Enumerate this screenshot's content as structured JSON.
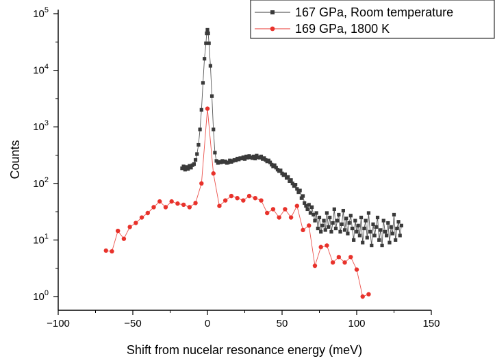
{
  "chart_data": {
    "type": "scatter",
    "xlabel": "Shift from nucelar resonance energy (meV)",
    "ylabel": "Counts",
    "xlim": [
      -100,
      150
    ],
    "ylim": [
      0.5,
      100000
    ],
    "yscale": "log",
    "grid": false,
    "legend_position": "top-right",
    "x_ticks": [
      -100,
      -50,
      0,
      50,
      100,
      150
    ],
    "x_tick_labels": [
      "−100",
      "−50",
      "0",
      "50",
      "100",
      "150"
    ],
    "y_ticks": [
      1,
      10,
      100,
      1000,
      10000,
      100000
    ],
    "y_tick_labels": [
      {
        "base": "10",
        "exp": "0"
      },
      {
        "base": "10",
        "exp": "1"
      },
      {
        "base": "10",
        "exp": "2"
      },
      {
        "base": "10",
        "exp": "3"
      },
      {
        "base": "10",
        "exp": "4"
      },
      {
        "base": "10",
        "exp": "5"
      }
    ],
    "series": [
      {
        "name": "167 GPa, Room temperature",
        "color": "#3a3a3a",
        "marker": "square",
        "x": [
          -17,
          -16,
          -15,
          -14,
          -13,
          -12,
          -11,
          -10,
          -9,
          -8,
          -7,
          -6,
          -5,
          -4,
          -3,
          -2,
          -1,
          -0.5,
          0,
          0.5,
          1,
          2,
          3,
          4,
          5,
          6,
          7,
          8,
          9,
          10,
          11,
          12,
          13,
          14,
          15,
          16,
          17,
          18,
          19,
          20,
          21,
          22,
          23,
          24,
          25,
          26,
          27,
          28,
          29,
          30,
          31,
          32,
          33,
          34,
          35,
          36,
          37,
          38,
          39,
          40,
          41,
          42,
          43,
          44,
          45,
          46,
          47,
          48,
          49,
          50,
          51,
          52,
          53,
          54,
          55,
          56,
          57,
          58,
          59,
          60,
          61,
          62,
          63,
          64,
          65,
          66,
          67,
          68,
          69,
          70,
          71,
          72,
          73,
          74,
          75,
          76,
          77,
          78,
          79,
          80,
          81,
          82,
          83,
          84,
          85,
          86,
          87,
          88,
          89,
          90,
          91,
          92,
          93,
          94,
          95,
          96,
          97,
          98,
          99,
          100,
          101,
          102,
          103,
          104,
          105,
          106,
          107,
          108,
          109,
          110,
          111,
          112,
          113,
          114,
          115,
          116,
          117,
          118,
          119,
          120,
          121,
          122,
          123,
          124,
          125,
          126,
          127,
          128,
          129,
          130
        ],
        "y": [
          185,
          200,
          175,
          195,
          180,
          205,
          190,
          210,
          220,
          260,
          330,
          480,
          900,
          2000,
          6000,
          16000,
          30000,
          45000,
          52000,
          45000,
          30000,
          12000,
          3500,
          900,
          350,
          250,
          230,
          240,
          235,
          250,
          240,
          245,
          230,
          235,
          255,
          240,
          250,
          260,
          255,
          275,
          265,
          280,
          275,
          290,
          270,
          300,
          285,
          305,
          290,
          280,
          300,
          275,
          310,
          290,
          285,
          300,
          270,
          280,
          260,
          245,
          255,
          235,
          215,
          200,
          210,
          190,
          175,
          165,
          170,
          150,
          140,
          145,
          125,
          130,
          110,
          115,
          100,
          90,
          95,
          80,
          70,
          75,
          55,
          60,
          45,
          40,
          35,
          42,
          30,
          38,
          28,
          22,
          30,
          16,
          25,
          14,
          18,
          22,
          15,
          30,
          17,
          25,
          14,
          20,
          35,
          16,
          22,
          28,
          14,
          19,
          33,
          15,
          24,
          13,
          20,
          27,
          16,
          10,
          22,
          14,
          18,
          12,
          25,
          9,
          16,
          22,
          11,
          30,
          14,
          8,
          19,
          12,
          17,
          25,
          10,
          15,
          8,
          22,
          14,
          12,
          20,
          9,
          17,
          13,
          28,
          10,
          16,
          21,
          12,
          18
        ]
      },
      {
        "name": "169 GPa, 1800 K",
        "color": "#e8322b",
        "marker": "circle",
        "x": [
          -68,
          -64,
          -60,
          -56,
          -52,
          -48,
          -44,
          -40,
          -36,
          -32,
          -28,
          -24,
          -20,
          -16,
          -12,
          -8,
          -4,
          0,
          4,
          8,
          12,
          16,
          20,
          24,
          28,
          32,
          36,
          40,
          44,
          48,
          52,
          56,
          60,
          64,
          68,
          72,
          76,
          80,
          84,
          88,
          92,
          96,
          100,
          104,
          108
        ],
        "y": [
          6.5,
          6.3,
          14.5,
          10.5,
          17,
          20,
          25,
          30,
          38,
          48,
          38,
          48,
          44,
          42,
          38,
          45,
          100,
          2100,
          150,
          40,
          50,
          60,
          55,
          50,
          60,
          55,
          50,
          30,
          35,
          25,
          35,
          25,
          40,
          15,
          18,
          3.5,
          7.5,
          8,
          4,
          5,
          4,
          5,
          3,
          1.0,
          1.1
        ]
      }
    ]
  }
}
